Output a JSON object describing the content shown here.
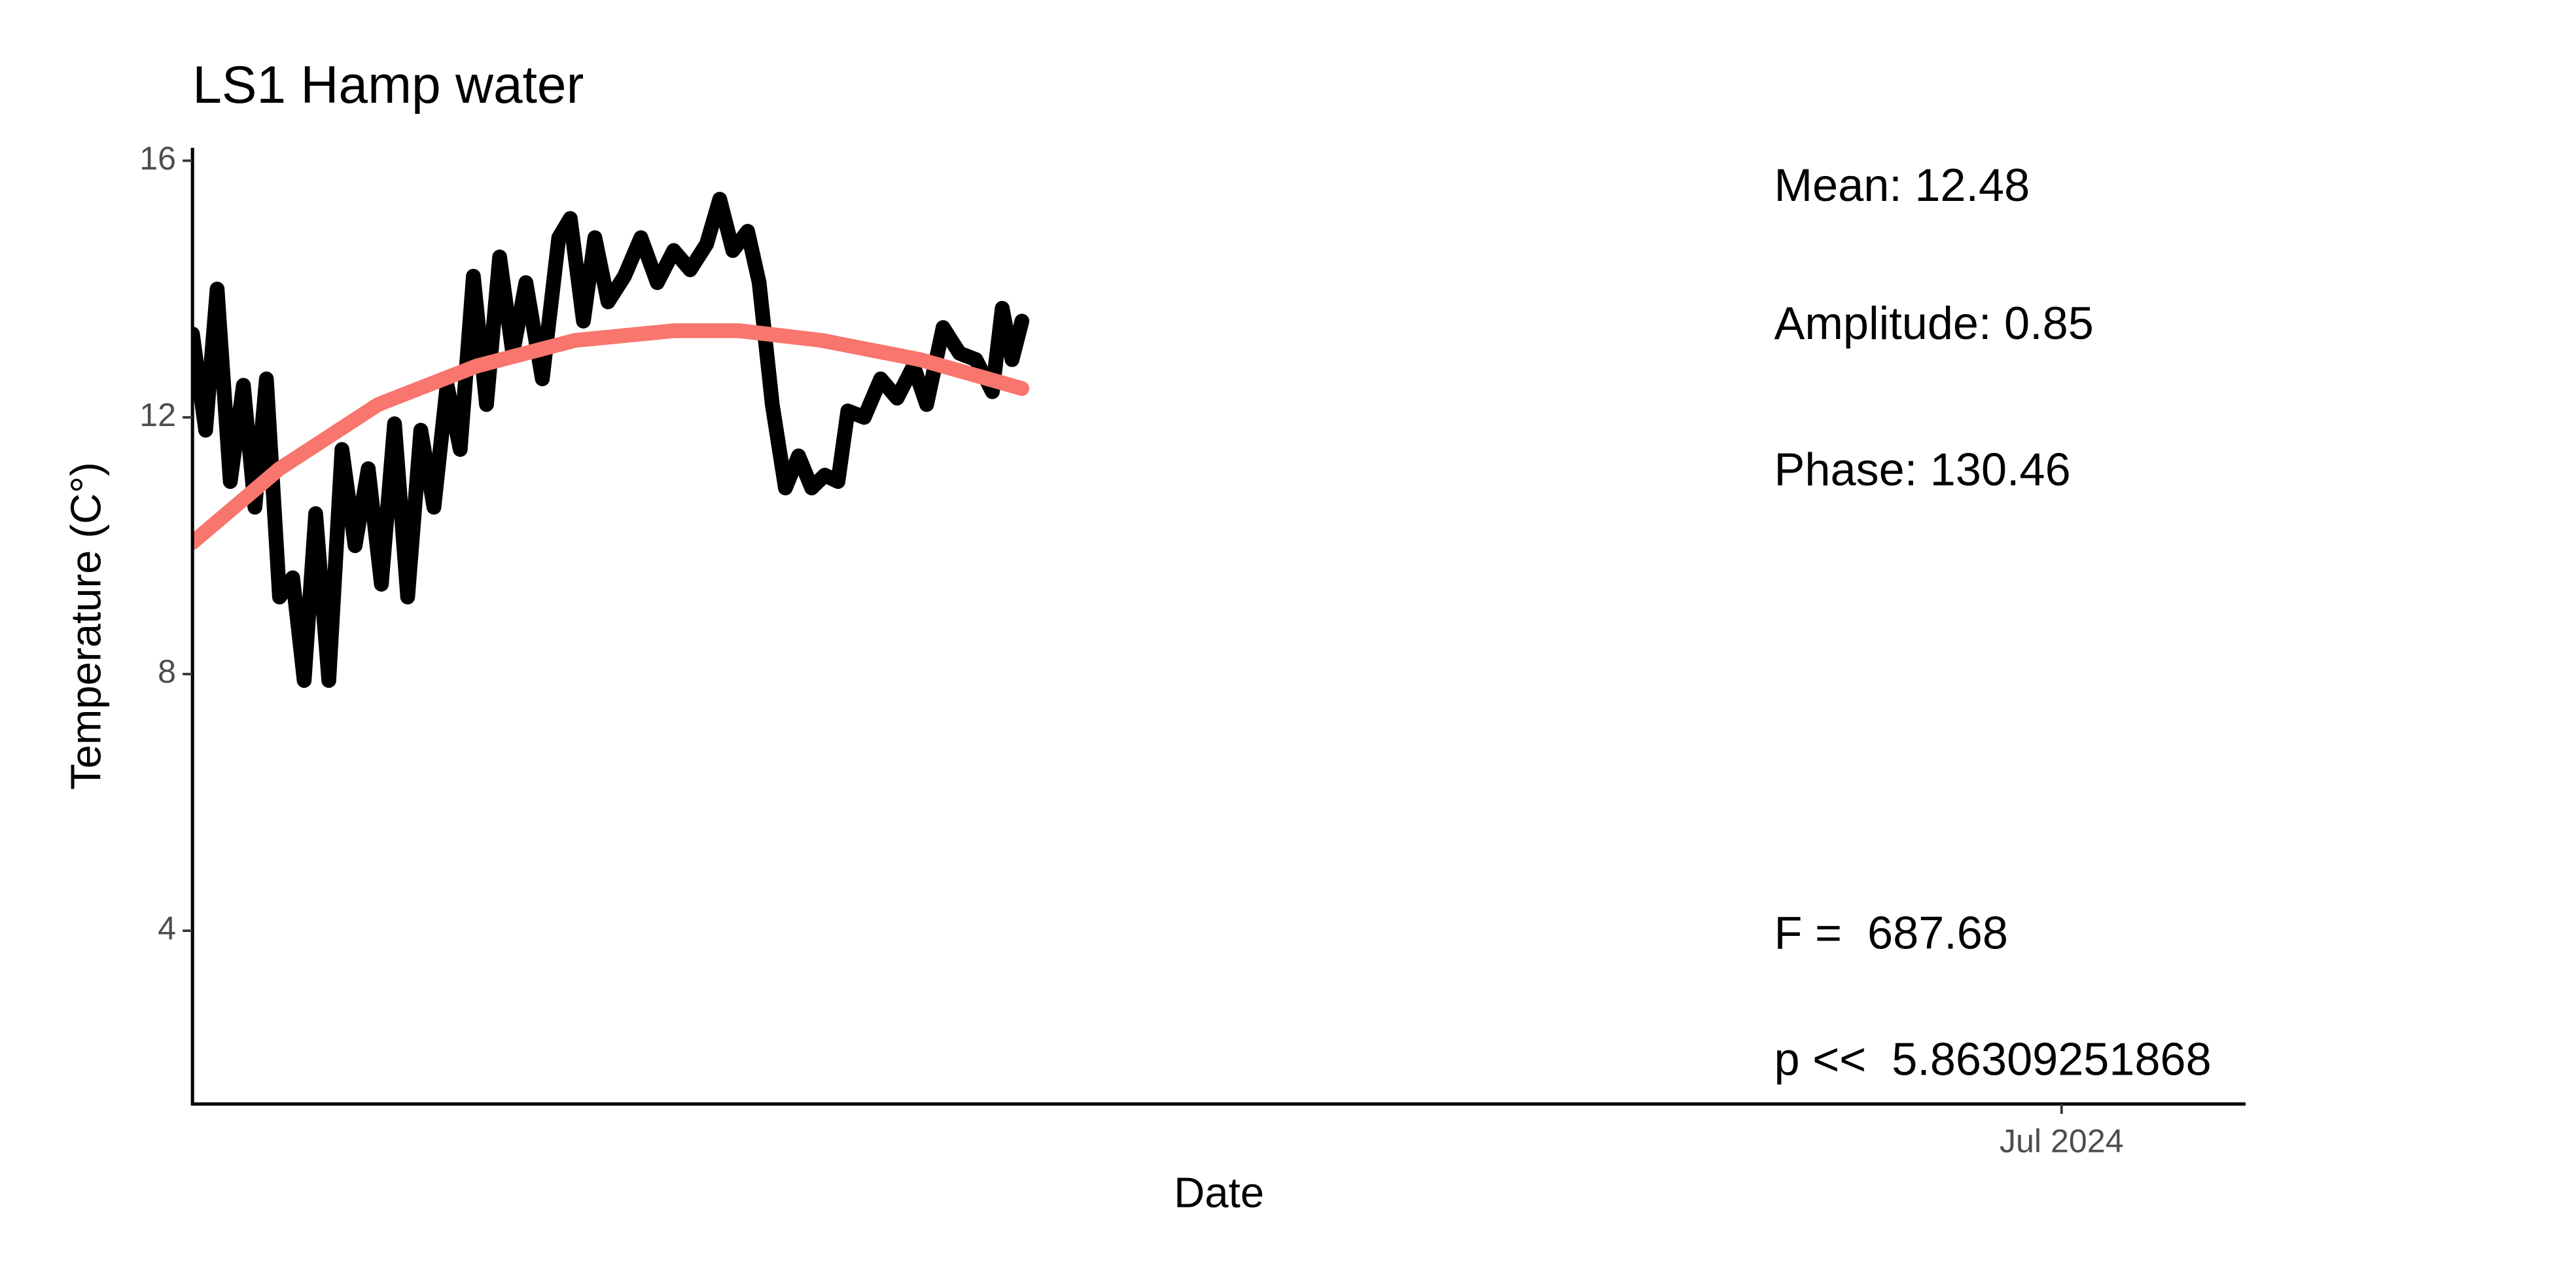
{
  "chart_data": {
    "type": "line",
    "title": "LS1 Hamp water",
    "x_label": "Date",
    "y_label": "Temperature (C°)",
    "xlim": [
      2023.8172,
      2024.5672
    ],
    "xticks": [
      {
        "value": 2024.5,
        "label": "Jul 2024"
      }
    ],
    "ylim": [
      1.3,
      16.2
    ],
    "yticks": [
      4,
      8,
      12,
      16
    ],
    "grid": false,
    "series": [
      {
        "color": "#000000",
        "x": [
          2023.8172,
          2023.822,
          2023.8262,
          2023.831,
          2023.8358,
          2023.84,
          2023.8442,
          2023.849,
          2023.8538,
          2023.858,
          2023.8622,
          2023.867,
          2023.8718,
          2023.8766,
          2023.8814,
          2023.8862,
          2023.891,
          2023.8958,
          2023.9006,
          2023.9054,
          2023.9102,
          2023.915,
          2023.9198,
          2023.9246,
          2023.9294,
          2023.9342,
          2023.939,
          2023.945,
          2023.951,
          2023.9552,
          2023.96,
          2023.9642,
          2023.969,
          2023.975,
          2023.981,
          2023.987,
          2023.993,
          2023.999,
          2024.005,
          2024.0098,
          2024.0146,
          2024.02,
          2024.0242,
          2024.029,
          2024.0338,
          2024.0386,
          2024.0434,
          2024.0482,
          2024.053,
          2024.0566,
          2024.0626,
          2024.0686,
          2024.0746,
          2024.0806,
          2024.0854,
          2024.0914,
          2024.0974,
          2024.1034,
          2024.1094,
          2024.113,
          2024.1166,
          2024.1202
        ],
        "values": [
          13.3,
          11.8,
          14.0,
          11.0,
          12.5,
          10.6,
          12.6,
          9.2,
          9.5,
          7.9,
          10.5,
          7.9,
          11.5,
          10.0,
          11.2,
          9.4,
          11.9,
          9.2,
          11.8,
          10.6,
          12.5,
          11.5,
          14.2,
          12.2,
          14.5,
          13.0,
          14.1,
          12.6,
          14.8,
          15.1,
          13.5,
          14.8,
          13.8,
          14.2,
          14.8,
          14.1,
          14.6,
          14.3,
          14.7,
          15.4,
          14.6,
          14.9,
          14.1,
          12.2,
          10.9,
          11.4,
          10.9,
          11.1,
          11.0,
          12.1,
          12.0,
          12.6,
          12.3,
          12.8,
          12.2,
          13.4,
          13.0,
          12.9,
          12.4,
          13.7,
          12.9,
          13.5
        ]
      },
      {
        "color": "#F8766D",
        "x": [
          2023.8172,
          2023.849,
          2023.885,
          2023.921,
          2023.957,
          2023.993,
          2024.017,
          2024.047,
          2024.083,
          2024.1202
        ],
        "values": [
          10.05,
          11.2,
          12.2,
          12.8,
          13.2,
          13.35,
          13.35,
          13.2,
          12.9,
          12.45
        ]
      }
    ],
    "annotations": [
      "Mean: 12.48",
      "Amplitude: 0.85",
      "Phase: 130.46",
      "F =  687.68",
      "p <<  5.86309251868"
    ]
  }
}
